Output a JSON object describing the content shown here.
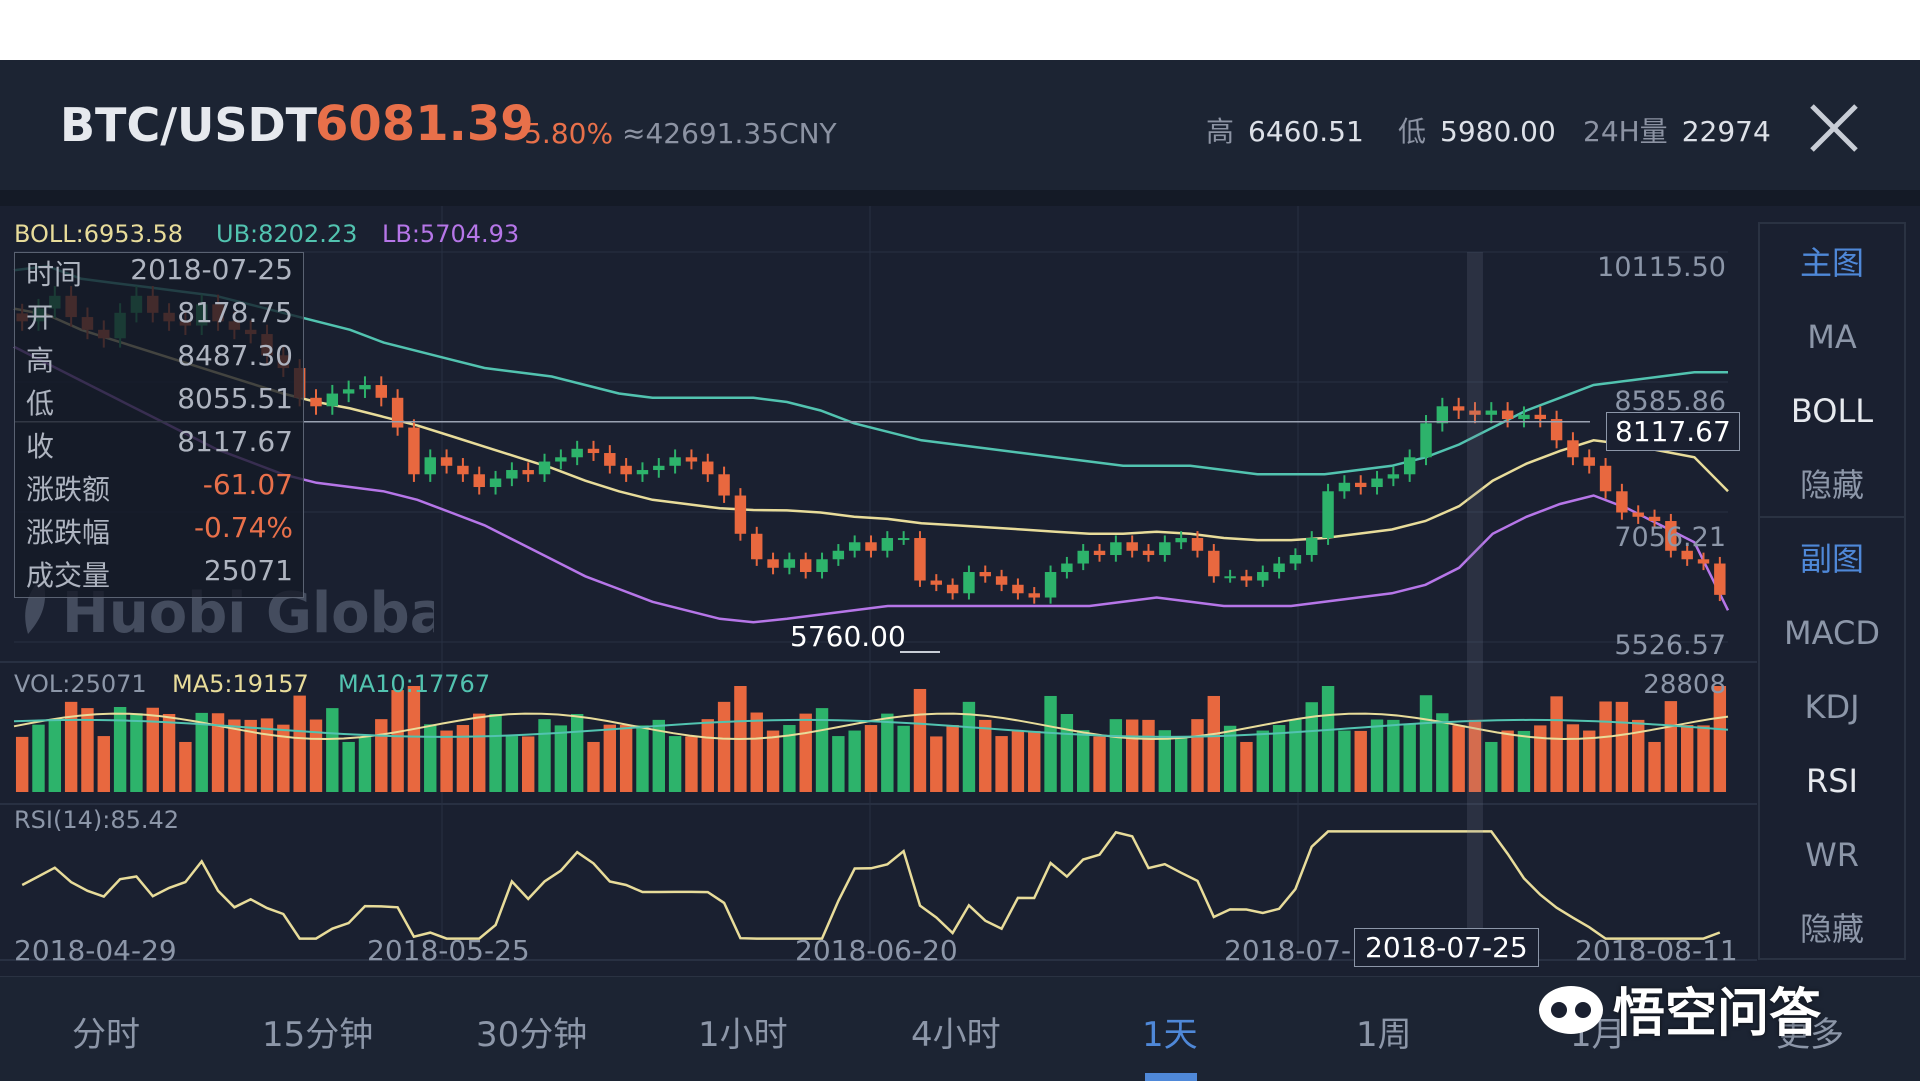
{
  "header": {
    "pair": "BTC/USDT",
    "price": "6081.39",
    "change_pct": "-5.80%",
    "cny": "≈42691.35CNY",
    "high_label": "高",
    "high_value": "6460.51",
    "low_label": "低",
    "low_value": "5980.00",
    "vol_label": "24H量",
    "vol_value": "22974",
    "close_icon": "close-icon"
  },
  "boll_legend": {
    "boll": "BOLL:6953.58",
    "ub": "UB:8202.23",
    "lb": "LB:5704.93"
  },
  "price_axis": {
    "top": "10115.50",
    "mid1": "8585.86",
    "mid2": "7056.21",
    "bottom": "5526.57"
  },
  "crosshair": {
    "price_label": "8117.67",
    "date_label": "2018-07-25"
  },
  "min_marker": "5760.00",
  "watermark_logo": "Huobi Global",
  "tooltip": {
    "rows": [
      {
        "k": "时间",
        "v": "2018-07-25"
      },
      {
        "k": "开",
        "v": "8178.75"
      },
      {
        "k": "高",
        "v": "8487.30"
      },
      {
        "k": "低",
        "v": "8055.51"
      },
      {
        "k": "收",
        "v": "8117.67"
      },
      {
        "k": "涨跌额",
        "v": "-61.07"
      },
      {
        "k": "涨跌幅",
        "v": "-0.74%"
      },
      {
        "k": "成交量",
        "v": "25071"
      }
    ]
  },
  "vol_legend": {
    "vol": "VOL:25071",
    "ma5": "MA5:19157",
    "ma10": "MA10:17767",
    "max": "28808"
  },
  "rsi_legend": {
    "rsi": "RSI(14):85.42"
  },
  "date_axis": [
    "2018-04-29",
    "2018-05-25",
    "2018-06-20",
    "2018-07-1",
    "2018-08-11"
  ],
  "sidebar": {
    "main_header": "主图",
    "main_items": [
      "MA",
      "BOLL",
      "隐藏"
    ],
    "sub_header": "副图",
    "sub_items": [
      "MACD",
      "KDJ",
      "RSI",
      "WR",
      "隐藏"
    ]
  },
  "tabs": [
    "分时",
    "15分钟",
    "30分钟",
    "1小时",
    "4小时",
    "1天",
    "1周",
    "1月",
    "更多"
  ],
  "active_tab": "1天",
  "corner_watermark": "悟空问答",
  "colors": {
    "up": "#2db36b",
    "down": "#e8683f",
    "accent": "#4f88d8",
    "ub": "#52c3b0",
    "mid": "#e8dc9a",
    "lb": "#b676e8",
    "background": "#1a2030"
  },
  "chart_data": {
    "type": "candlestick",
    "period": "1天",
    "x_range": [
      "2018-04-29",
      "2018-08-11"
    ],
    "price_range": [
      5526.57,
      10115.5
    ],
    "ohlc_highlighted": {
      "date": "2018-07-25",
      "open": 8178.75,
      "high": 8487.3,
      "low": 8055.51,
      "close": 8117.67,
      "volume": 25071
    },
    "close_approx": [
      9300,
      9450,
      9600,
      9350,
      9200,
      9100,
      9400,
      9600,
      9400,
      9300,
      9250,
      9500,
      9300,
      9200,
      9150,
      8900,
      8750,
      8400,
      8300,
      8450,
      8500,
      8550,
      8400,
      8050,
      7500,
      7700,
      7600,
      7500,
      7350,
      7450,
      7550,
      7500,
      7650,
      7700,
      7800,
      7750,
      7600,
      7500,
      7550,
      7600,
      7700,
      7650,
      7500,
      7250,
      6800,
      6500,
      6400,
      6500,
      6350,
      6500,
      6600,
      6700,
      6600,
      6750,
      6750,
      6250,
      6200,
      6100,
      6350,
      6300,
      6200,
      6100,
      6050,
      6350,
      6450,
      6600,
      6550,
      6700,
      6600,
      6550,
      6700,
      6750,
      6600,
      6300,
      6300,
      6250,
      6350,
      6450,
      6550,
      6750,
      7300,
      7400,
      7350,
      7450,
      7500,
      7700,
      8100,
      8300,
      8250,
      8200,
      8250,
      8150,
      8200,
      8150,
      7900,
      7700,
      7600,
      7300,
      7050,
      7000,
      6950,
      6600,
      6500,
      6450,
      6081.39
    ],
    "boll_ub_approx": [
      9900,
      9950,
      9800,
      9750,
      9700,
      9650,
      9600,
      9500,
      9400,
      9300,
      9200,
      9050,
      8950,
      8850,
      8750,
      8700,
      8650,
      8550,
      8450,
      8400,
      8400,
      8400,
      8400,
      8350,
      8250,
      8100,
      8000,
      7900,
      7850,
      7800,
      7750,
      7700,
      7650,
      7600,
      7600,
      7600,
      7550,
      7500,
      7500,
      7500,
      7550,
      7600,
      7700,
      7850,
      8050,
      8250,
      8400,
      8550,
      8600,
      8650,
      8700,
      8700
    ],
    "boll_lb_approx": [
      9000,
      8800,
      8600,
      8400,
      8200,
      8000,
      7800,
      7650,
      7500,
      7400,
      7350,
      7300,
      7200,
      7050,
      6900,
      6700,
      6500,
      6300,
      6150,
      6000,
      5900,
      5800,
      5760,
      5800,
      5850,
      5900,
      5950,
      5950,
      5950,
      5950,
      5950,
      5950,
      5950,
      6000,
      6050,
      6000,
      5950,
      5950,
      5950,
      6000,
      6050,
      6100,
      6200,
      6400,
      6800,
      7000,
      7150,
      7250,
      7100,
      6900,
      6700,
      5900
    ],
    "rsi_value": 85.42,
    "volume_range": [
      0,
      28808
    ]
  }
}
